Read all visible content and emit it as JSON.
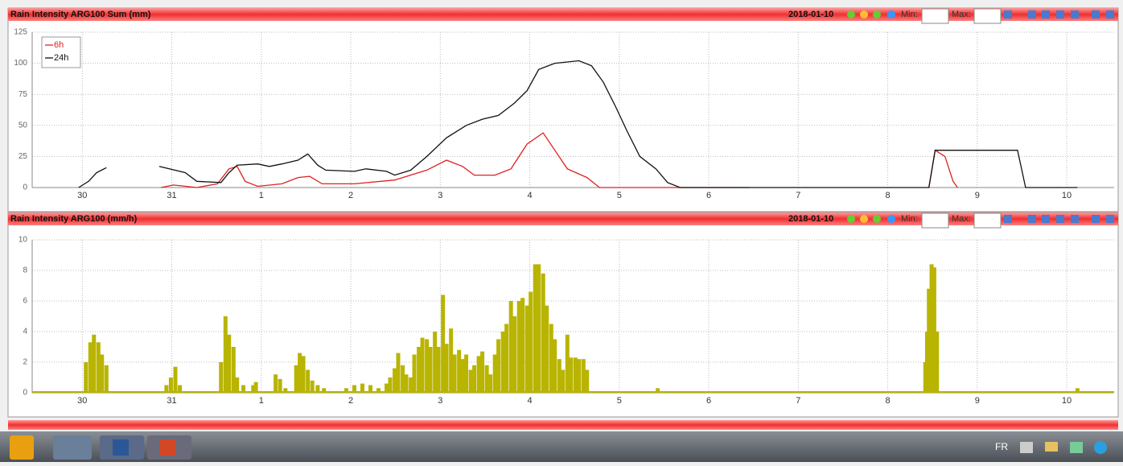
{
  "chart_data": [
    {
      "type": "line",
      "title": "Rain Intensity ARG100 Sum (mm)",
      "date": "2018-01-10",
      "min_label": "Min:",
      "max_label": "Max:",
      "xlim": [
        -0.56,
        11.53
      ],
      "xticks": [
        {
          "value": 0,
          "label": "30"
        },
        {
          "value": 1,
          "label": "31"
        },
        {
          "value": 2,
          "label": "1"
        },
        {
          "value": 3,
          "label": "2"
        },
        {
          "value": 4,
          "label": "3"
        },
        {
          "value": 5,
          "label": "4"
        },
        {
          "value": 6,
          "label": "5"
        },
        {
          "value": 7,
          "label": "6"
        },
        {
          "value": 8,
          "label": "7"
        },
        {
          "value": 9,
          "label": "8"
        },
        {
          "value": 10,
          "label": "9"
        },
        {
          "value": 11,
          "label": "10"
        }
      ],
      "ylim": [
        0,
        125
      ],
      "yticks": [
        0,
        25,
        50,
        75,
        100,
        125
      ],
      "grid": true,
      "legend": "upper left",
      "series": [
        {
          "name": "6h",
          "color": "#e02020",
          "x": [
            0.88,
            1.02,
            1.28,
            1.51,
            1.64,
            1.73,
            1.82,
            1.96,
            2.23,
            2.41,
            2.54,
            2.68,
            3.04,
            3.49,
            3.85,
            4.07,
            4.25,
            4.38,
            4.61,
            4.79,
            4.97,
            5.15,
            5.28,
            5.42,
            5.64,
            5.78,
            7.45,
            null,
            9.46,
            9.53,
            9.64,
            9.73,
            9.78
          ],
          "values": [
            0,
            2,
            0,
            3,
            15,
            17,
            5,
            1,
            3,
            8,
            9,
            3,
            3,
            6,
            14,
            22,
            17,
            10,
            10,
            15,
            35,
            44,
            30,
            15,
            8,
            0,
            0,
            null,
            0,
            30,
            25,
            5,
            0
          ]
        },
        {
          "name": "24h",
          "color": "#111111",
          "x": [
            -0.04,
            0.07,
            0.16,
            0.27,
            null,
            0.86,
            1.15,
            1.28,
            1.55,
            1.64,
            1.73,
            1.96,
            2.09,
            2.23,
            2.41,
            2.52,
            2.63,
            2.72,
            3.04,
            3.17,
            3.4,
            3.49,
            3.67,
            3.85,
            4.07,
            4.29,
            4.47,
            4.65,
            4.83,
            4.97,
            5.1,
            5.28,
            5.55,
            5.69,
            5.82,
            5.96,
            6.09,
            6.23,
            6.41,
            6.54,
            6.68,
            9.46,
            9.53,
            10.45,
            10.54,
            11.12
          ],
          "values": [
            0,
            5,
            12,
            16,
            null,
            17,
            12,
            5,
            4,
            12,
            18,
            19,
            17,
            19,
            22,
            27,
            18,
            14,
            13,
            15,
            13,
            10,
            14,
            25,
            40,
            50,
            55,
            58,
            68,
            78,
            95,
            100,
            102,
            98,
            85,
            65,
            45,
            25,
            15,
            4,
            0,
            0,
            30,
            30,
            0,
            0
          ]
        }
      ]
    },
    {
      "type": "bar",
      "title": "Rain Intensity ARG100 (mm/h)",
      "date": "2018-01-10",
      "min_label": "Min:",
      "max_label": "Max:",
      "xlim": [
        -0.56,
        11.53
      ],
      "xticks": [
        {
          "value": 0,
          "label": "30"
        },
        {
          "value": 1,
          "label": "31"
        },
        {
          "value": 2,
          "label": "1"
        },
        {
          "value": 3,
          "label": "2"
        },
        {
          "value": 4,
          "label": "3"
        },
        {
          "value": 5,
          "label": "4"
        },
        {
          "value": 6,
          "label": "5"
        },
        {
          "value": 7,
          "label": "6"
        },
        {
          "value": 8,
          "label": "7"
        },
        {
          "value": 9,
          "label": "8"
        },
        {
          "value": 10,
          "label": "9"
        },
        {
          "value": 11,
          "label": "10"
        }
      ],
      "ylim": [
        0,
        10
      ],
      "yticks": [
        0,
        2,
        4,
        6,
        8,
        10
      ],
      "grid": true,
      "color": "#b8b400",
      "x": [
        0.04,
        0.09,
        0.13,
        0.18,
        0.22,
        0.27,
        0.94,
        0.99,
        1.04,
        1.09,
        1.55,
        1.6,
        1.64,
        1.69,
        1.73,
        1.8,
        1.91,
        1.94,
        2.16,
        2.21,
        2.27,
        2.39,
        2.43,
        2.47,
        2.52,
        2.57,
        2.63,
        2.7,
        2.95,
        3.04,
        3.13,
        3.22,
        3.31,
        3.4,
        3.44,
        3.49,
        3.53,
        3.58,
        3.62,
        3.67,
        3.71,
        3.76,
        3.8,
        3.85,
        3.89,
        3.94,
        3.98,
        4.03,
        4.07,
        4.12,
        4.16,
        4.21,
        4.25,
        4.29,
        4.34,
        4.38,
        4.43,
        4.47,
        4.52,
        4.56,
        4.61,
        4.65,
        4.7,
        4.74,
        4.79,
        4.83,
        4.88,
        4.92,
        4.97,
        5.01,
        5.06,
        5.1,
        5.15,
        5.19,
        5.24,
        5.28,
        5.33,
        5.37,
        5.42,
        5.46,
        5.51,
        5.55,
        5.6,
        5.64,
        6.43,
        9.42,
        9.44,
        9.46,
        9.49,
        9.52,
        9.55,
        11.12
      ],
      "values": [
        2,
        3.3,
        3.8,
        3.3,
        2.5,
        1.8,
        0.5,
        1,
        1.7,
        0.5,
        2,
        5,
        3.8,
        3,
        1,
        0.5,
        0.5,
        0.7,
        1.2,
        0.9,
        0.3,
        1.8,
        2.6,
        2.4,
        1.5,
        0.8,
        0.5,
        0.3,
        0.3,
        0.5,
        0.6,
        0.5,
        0.3,
        0.6,
        1,
        1.6,
        2.6,
        1.8,
        1.2,
        1,
        2.5,
        3,
        3.6,
        3.5,
        3,
        4,
        3,
        6.4,
        3.2,
        4.2,
        2.5,
        2.8,
        2.2,
        2.5,
        1.5,
        1.8,
        2.4,
        2.7,
        1.8,
        1.2,
        2.5,
        3.5,
        4,
        4.5,
        6,
        5,
        6,
        6.2,
        5.7,
        6.6,
        8.4,
        8.4,
        7.8,
        5.7,
        4.5,
        3.5,
        2.2,
        1.5,
        3.8,
        2.3,
        2.3,
        2.2,
        2.2,
        1.5,
        0.3,
        2,
        4,
        6.8,
        8.4,
        8.2,
        4,
        0.3
      ]
    }
  ],
  "taskbar": {
    "language": "FR"
  }
}
